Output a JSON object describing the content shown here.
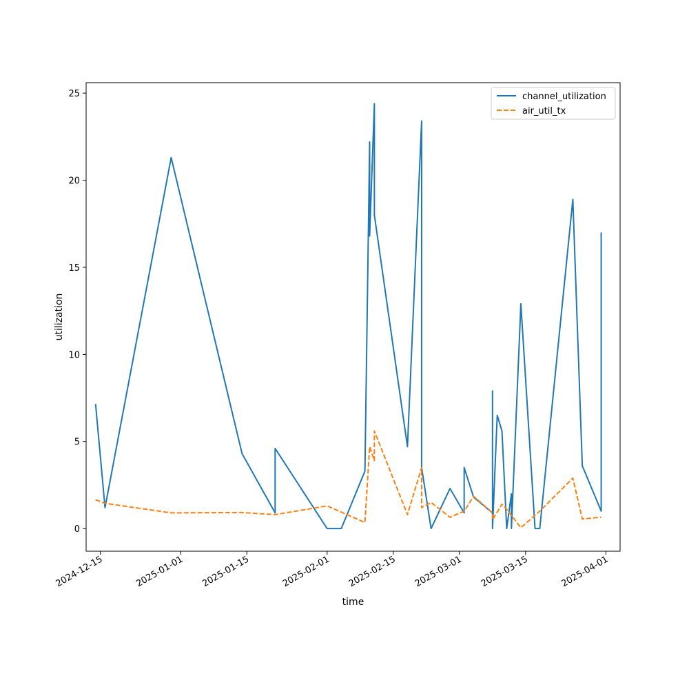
{
  "chart_data": {
    "type": "line",
    "title": "",
    "xlabel": "time",
    "ylabel": "utilization",
    "xlim": [
      "2024-12-12",
      "2025-04-04"
    ],
    "ylim": [
      -1.3,
      25.6
    ],
    "grid": false,
    "legend_position": "top-right",
    "x_ticks": [
      "2024-12-15",
      "2025-01-01",
      "2025-01-15",
      "2025-02-01",
      "2025-02-15",
      "2025-03-01",
      "2025-03-15",
      "2025-04-01"
    ],
    "y_ticks": [
      0,
      5,
      10,
      15,
      20,
      25
    ],
    "series": [
      {
        "name": "channel_utilization",
        "color": "#1f77b4",
        "dash": "solid",
        "points": [
          [
            "2024-12-14",
            7.15
          ],
          [
            "2024-12-16",
            1.2
          ],
          [
            "2024-12-30",
            21.3
          ],
          [
            "2025-01-14",
            4.3
          ],
          [
            "2025-01-21",
            0.9
          ],
          [
            "2025-01-21",
            4.6
          ],
          [
            "2025-02-01",
            0.0
          ],
          [
            "2025-02-04",
            0.0
          ],
          [
            "2025-02-09",
            3.3
          ],
          [
            "2025-02-10",
            22.2
          ],
          [
            "2025-02-10",
            16.8
          ],
          [
            "2025-02-11",
            24.4
          ],
          [
            "2025-02-11",
            18.0
          ],
          [
            "2025-02-18",
            4.7
          ],
          [
            "2025-02-21",
            23.4
          ],
          [
            "2025-02-21",
            3.5
          ],
          [
            "2025-02-23",
            0.0
          ],
          [
            "2025-02-27",
            2.3
          ],
          [
            "2025-03-02",
            0.9
          ],
          [
            "2025-03-02",
            3.5
          ],
          [
            "2025-03-04",
            1.8
          ],
          [
            "2025-03-08",
            0.9
          ],
          [
            "2025-03-08",
            7.9
          ],
          [
            "2025-03-08",
            0.0
          ],
          [
            "2025-03-09",
            6.5
          ],
          [
            "2025-03-10",
            5.6
          ],
          [
            "2025-03-11",
            0.0
          ],
          [
            "2025-03-12",
            2.0
          ],
          [
            "2025-03-12",
            0.0
          ],
          [
            "2025-03-14",
            12.9
          ],
          [
            "2025-03-17",
            0.0
          ],
          [
            "2025-03-18",
            0.0
          ],
          [
            "2025-03-25",
            18.9
          ],
          [
            "2025-03-27",
            3.6
          ],
          [
            "2025-03-31",
            1.0
          ],
          [
            "2025-03-31",
            17.0
          ]
        ]
      },
      {
        "name": "air_util_tx",
        "color": "#ff7f0e",
        "dash": "dashed",
        "points": [
          [
            "2024-12-14",
            1.65
          ],
          [
            "2024-12-16",
            1.45
          ],
          [
            "2024-12-30",
            0.9
          ],
          [
            "2025-01-14",
            0.92
          ],
          [
            "2025-01-21",
            0.8
          ],
          [
            "2025-02-01",
            1.3
          ],
          [
            "2025-02-09",
            0.35
          ],
          [
            "2025-02-10",
            4.7
          ],
          [
            "2025-02-11",
            3.9
          ],
          [
            "2025-02-11",
            5.6
          ],
          [
            "2025-02-18",
            0.8
          ],
          [
            "2025-02-21",
            3.5
          ],
          [
            "2025-02-21",
            1.2
          ],
          [
            "2025-02-23",
            1.5
          ],
          [
            "2025-02-27",
            0.65
          ],
          [
            "2025-03-02",
            1.0
          ],
          [
            "2025-03-04",
            1.85
          ],
          [
            "2025-03-08",
            0.9
          ],
          [
            "2025-03-08",
            0.5
          ],
          [
            "2025-03-10",
            1.4
          ],
          [
            "2025-03-11",
            1.1
          ],
          [
            "2025-03-14",
            0.05
          ],
          [
            "2025-03-18",
            1.0
          ],
          [
            "2025-03-25",
            2.9
          ],
          [
            "2025-03-27",
            0.55
          ],
          [
            "2025-03-31",
            0.65
          ]
        ]
      }
    ]
  }
}
